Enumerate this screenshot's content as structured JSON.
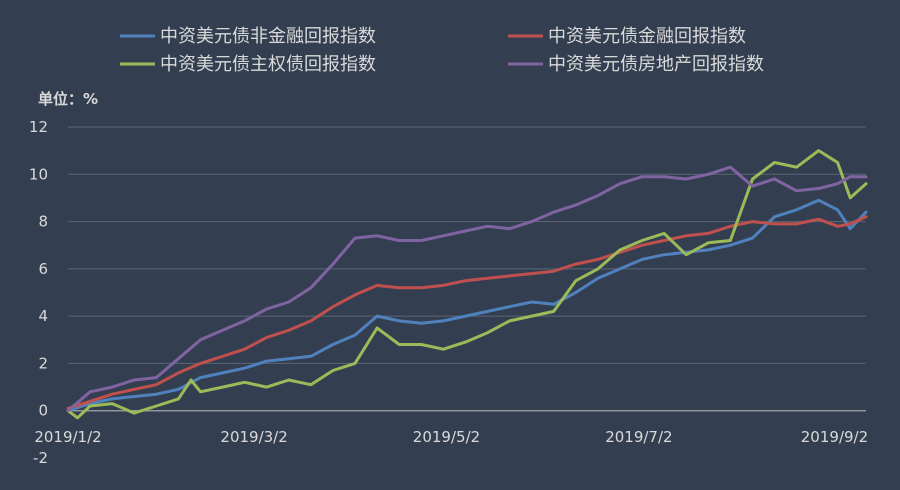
{
  "chart_data": {
    "type": "line",
    "unit_label": "单位：%",
    "x_axis": {
      "start": "2019-01-02",
      "end": "2019-09-12",
      "tick_labels": [
        {
          "date": "2019-01-02",
          "label": "2019/1/2"
        },
        {
          "date": "2019-03-02",
          "label": "2019/3/2"
        },
        {
          "date": "2019-05-02",
          "label": "2019/5/2"
        },
        {
          "date": "2019-07-02",
          "label": "2019/7/2"
        },
        {
          "date": "2019-09-02",
          "label": "2019/9/2"
        }
      ]
    },
    "y_axis": {
      "min": -2,
      "max": 12,
      "tick_labels": [
        "-2",
        "0",
        "2",
        "4",
        "6",
        "8",
        "10",
        "12"
      ],
      "gridlines": [
        0,
        2,
        4,
        6,
        8,
        10,
        12
      ]
    },
    "legend_position": "top",
    "series": [
      {
        "name": "中资美元债非金融回报指数",
        "color": "#4F81BD",
        "points": [
          [
            "2019-01-02",
            0.0
          ],
          [
            "2019-01-09",
            0.3
          ],
          [
            "2019-01-16",
            0.5
          ],
          [
            "2019-01-23",
            0.6
          ],
          [
            "2019-01-30",
            0.7
          ],
          [
            "2019-02-06",
            0.9
          ],
          [
            "2019-02-13",
            1.4
          ],
          [
            "2019-02-20",
            1.6
          ],
          [
            "2019-02-27",
            1.8
          ],
          [
            "2019-03-06",
            2.1
          ],
          [
            "2019-03-13",
            2.2
          ],
          [
            "2019-03-20",
            2.3
          ],
          [
            "2019-03-27",
            2.8
          ],
          [
            "2019-04-03",
            3.2
          ],
          [
            "2019-04-10",
            4.0
          ],
          [
            "2019-04-17",
            3.8
          ],
          [
            "2019-04-24",
            3.7
          ],
          [
            "2019-05-01",
            3.8
          ],
          [
            "2019-05-08",
            4.0
          ],
          [
            "2019-05-15",
            4.2
          ],
          [
            "2019-05-22",
            4.4
          ],
          [
            "2019-05-29",
            4.6
          ],
          [
            "2019-06-05",
            4.5
          ],
          [
            "2019-06-12",
            5.0
          ],
          [
            "2019-06-19",
            5.6
          ],
          [
            "2019-06-26",
            6.0
          ],
          [
            "2019-07-03",
            6.4
          ],
          [
            "2019-07-10",
            6.6
          ],
          [
            "2019-07-17",
            6.7
          ],
          [
            "2019-07-24",
            6.8
          ],
          [
            "2019-07-31",
            7.0
          ],
          [
            "2019-08-07",
            7.3
          ],
          [
            "2019-08-14",
            8.2
          ],
          [
            "2019-08-21",
            8.5
          ],
          [
            "2019-08-28",
            8.9
          ],
          [
            "2019-09-03",
            8.5
          ],
          [
            "2019-09-07",
            7.7
          ],
          [
            "2019-09-12",
            8.4
          ]
        ]
      },
      {
        "name": "中资美元债金融回报指数",
        "color": "#C0504D",
        "points": [
          [
            "2019-01-02",
            0.1
          ],
          [
            "2019-01-09",
            0.4
          ],
          [
            "2019-01-16",
            0.7
          ],
          [
            "2019-01-23",
            0.9
          ],
          [
            "2019-01-30",
            1.1
          ],
          [
            "2019-02-06",
            1.6
          ],
          [
            "2019-02-13",
            2.0
          ],
          [
            "2019-02-20",
            2.3
          ],
          [
            "2019-02-27",
            2.6
          ],
          [
            "2019-03-06",
            3.1
          ],
          [
            "2019-03-13",
            3.4
          ],
          [
            "2019-03-20",
            3.8
          ],
          [
            "2019-03-27",
            4.4
          ],
          [
            "2019-04-03",
            4.9
          ],
          [
            "2019-04-10",
            5.3
          ],
          [
            "2019-04-17",
            5.2
          ],
          [
            "2019-04-24",
            5.2
          ],
          [
            "2019-05-01",
            5.3
          ],
          [
            "2019-05-08",
            5.5
          ],
          [
            "2019-05-15",
            5.6
          ],
          [
            "2019-05-22",
            5.7
          ],
          [
            "2019-05-29",
            5.8
          ],
          [
            "2019-06-05",
            5.9
          ],
          [
            "2019-06-12",
            6.2
          ],
          [
            "2019-06-19",
            6.4
          ],
          [
            "2019-06-26",
            6.7
          ],
          [
            "2019-07-03",
            7.0
          ],
          [
            "2019-07-10",
            7.2
          ],
          [
            "2019-07-17",
            7.4
          ],
          [
            "2019-07-24",
            7.5
          ],
          [
            "2019-07-31",
            7.8
          ],
          [
            "2019-08-07",
            8.0
          ],
          [
            "2019-08-14",
            7.9
          ],
          [
            "2019-08-21",
            7.9
          ],
          [
            "2019-08-28",
            8.1
          ],
          [
            "2019-09-03",
            7.8
          ],
          [
            "2019-09-07",
            7.9
          ],
          [
            "2019-09-12",
            8.2
          ]
        ]
      },
      {
        "name": "中资美元债主权债回报指数",
        "color": "#9BBB59",
        "points": [
          [
            "2019-01-02",
            0.0
          ],
          [
            "2019-01-05",
            -0.3
          ],
          [
            "2019-01-09",
            0.2
          ],
          [
            "2019-01-16",
            0.3
          ],
          [
            "2019-01-23",
            -0.1
          ],
          [
            "2019-01-30",
            0.2
          ],
          [
            "2019-02-06",
            0.5
          ],
          [
            "2019-02-10",
            1.3
          ],
          [
            "2019-02-13",
            0.8
          ],
          [
            "2019-02-20",
            1.0
          ],
          [
            "2019-02-27",
            1.2
          ],
          [
            "2019-03-06",
            1.0
          ],
          [
            "2019-03-13",
            1.3
          ],
          [
            "2019-03-20",
            1.1
          ],
          [
            "2019-03-27",
            1.7
          ],
          [
            "2019-04-03",
            2.0
          ],
          [
            "2019-04-10",
            3.5
          ],
          [
            "2019-04-17",
            2.8
          ],
          [
            "2019-04-24",
            2.8
          ],
          [
            "2019-05-01",
            2.6
          ],
          [
            "2019-05-08",
            2.9
          ],
          [
            "2019-05-15",
            3.3
          ],
          [
            "2019-05-22",
            3.8
          ],
          [
            "2019-05-29",
            4.0
          ],
          [
            "2019-06-05",
            4.2
          ],
          [
            "2019-06-12",
            5.5
          ],
          [
            "2019-06-19",
            6.0
          ],
          [
            "2019-06-26",
            6.8
          ],
          [
            "2019-07-03",
            7.2
          ],
          [
            "2019-07-10",
            7.5
          ],
          [
            "2019-07-17",
            6.6
          ],
          [
            "2019-07-24",
            7.1
          ],
          [
            "2019-07-31",
            7.2
          ],
          [
            "2019-08-07",
            9.8
          ],
          [
            "2019-08-14",
            10.5
          ],
          [
            "2019-08-21",
            10.3
          ],
          [
            "2019-08-28",
            11.0
          ],
          [
            "2019-09-03",
            10.5
          ],
          [
            "2019-09-07",
            9.0
          ],
          [
            "2019-09-12",
            9.6
          ]
        ]
      },
      {
        "name": "中资美元债房地产回报指数",
        "color": "#8064A2",
        "points": [
          [
            "2019-01-02",
            0.0
          ],
          [
            "2019-01-09",
            0.8
          ],
          [
            "2019-01-16",
            1.0
          ],
          [
            "2019-01-23",
            1.3
          ],
          [
            "2019-01-30",
            1.4
          ],
          [
            "2019-02-06",
            2.2
          ],
          [
            "2019-02-13",
            3.0
          ],
          [
            "2019-02-20",
            3.4
          ],
          [
            "2019-02-27",
            3.8
          ],
          [
            "2019-03-06",
            4.3
          ],
          [
            "2019-03-13",
            4.6
          ],
          [
            "2019-03-20",
            5.2
          ],
          [
            "2019-03-27",
            6.2
          ],
          [
            "2019-04-03",
            7.3
          ],
          [
            "2019-04-10",
            7.4
          ],
          [
            "2019-04-17",
            7.2
          ],
          [
            "2019-04-24",
            7.2
          ],
          [
            "2019-05-01",
            7.4
          ],
          [
            "2019-05-08",
            7.6
          ],
          [
            "2019-05-15",
            7.8
          ],
          [
            "2019-05-22",
            7.7
          ],
          [
            "2019-05-29",
            8.0
          ],
          [
            "2019-06-05",
            8.4
          ],
          [
            "2019-06-12",
            8.7
          ],
          [
            "2019-06-19",
            9.1
          ],
          [
            "2019-06-26",
            9.6
          ],
          [
            "2019-07-03",
            9.9
          ],
          [
            "2019-07-10",
            9.9
          ],
          [
            "2019-07-17",
            9.8
          ],
          [
            "2019-07-24",
            10.0
          ],
          [
            "2019-07-31",
            10.3
          ],
          [
            "2019-08-07",
            9.5
          ],
          [
            "2019-08-14",
            9.8
          ],
          [
            "2019-08-21",
            9.3
          ],
          [
            "2019-08-28",
            9.4
          ],
          [
            "2019-09-03",
            9.6
          ],
          [
            "2019-09-07",
            9.9
          ],
          [
            "2019-09-12",
            9.9
          ]
        ]
      }
    ]
  }
}
